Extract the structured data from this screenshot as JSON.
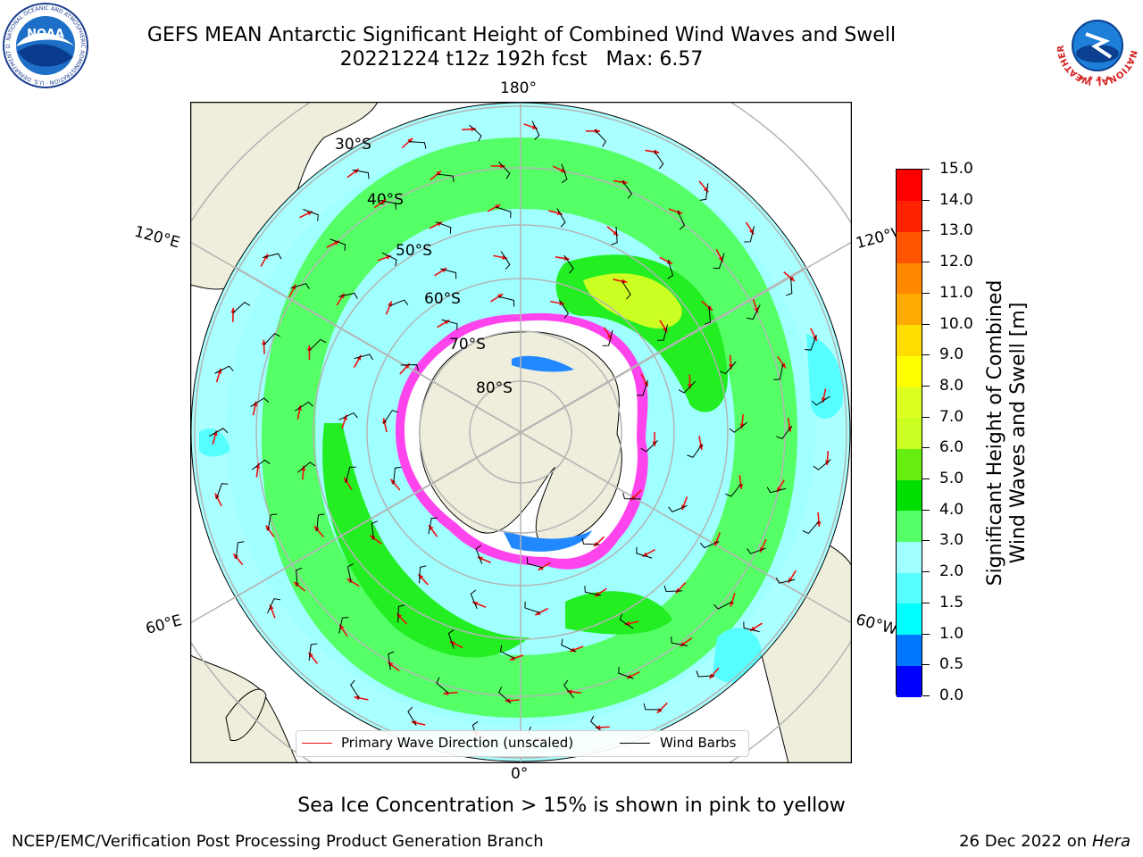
{
  "title": {
    "line1": "GEFS MEAN Antarctic Significant Height of Combined Wind Waves and Swell",
    "line2": "20221224 t12z 192h fcst   Max: 6.57"
  },
  "map": {
    "longitude_labels": [
      "180°",
      "120°E",
      "120°W",
      "60°E",
      "60°W",
      "0°"
    ],
    "latitude_labels": [
      "30°S",
      "40°S",
      "50°S",
      "60°S",
      "70°S",
      "80°S"
    ],
    "colors": {
      "land": "#efeedc",
      "ocean_low": "#aaffff",
      "band_2_3": "#a0ffff",
      "band_3_4": "#55ff66",
      "band_4_5": "#22ee22",
      "band_6_7": "#ccff22",
      "ice_pink": "#ff44ee",
      "ice_white": "#ffffff",
      "grid": "#b4b4b4",
      "arrow": "#ee1111",
      "barb": "#000000"
    }
  },
  "legend": {
    "primary_wave": "Primary Wave Direction (unscaled)",
    "wind_barbs": "Wind Barbs"
  },
  "colorbar": {
    "label_line1": "Significant Height of Combined",
    "label_line2": "Wind Waves and Swell [m]",
    "ticks": [
      "0.0",
      "0.5",
      "1.0",
      "1.5",
      "2.0",
      "3.0",
      "4.0",
      "5.0",
      "6.0",
      "7.0",
      "8.0",
      "9.0",
      "10.0",
      "11.0",
      "12.0",
      "13.0",
      "14.0",
      "15.0"
    ],
    "colors": [
      "#0000ff",
      "#0077ff",
      "#00ffff",
      "#55ffff",
      "#a0ffff",
      "#55ff66",
      "#00e000",
      "#66ee11",
      "#ccff22",
      "#ddff22",
      "#ffff00",
      "#ffdd00",
      "#ffaa00",
      "#ff8800",
      "#ff5500",
      "#ff2200",
      "#ff0000"
    ]
  },
  "note": "Sea Ice Concentration > 15% is shown in pink to yellow",
  "credit": "NCEP/EMC/Verification Post Processing Product Generation Branch",
  "stamp": {
    "date": "26 Dec 2022 on",
    "machine": "Hera"
  },
  "logos": {
    "noaa": "NOAA",
    "noaa_ring": "NATIONAL OCEANIC AND ATMOSPHERIC ADMINISTRATION · U.S. DEPARTMENT OF COMMERCE",
    "nws_ring": "NATIONAL WEATHER SERVICE"
  }
}
